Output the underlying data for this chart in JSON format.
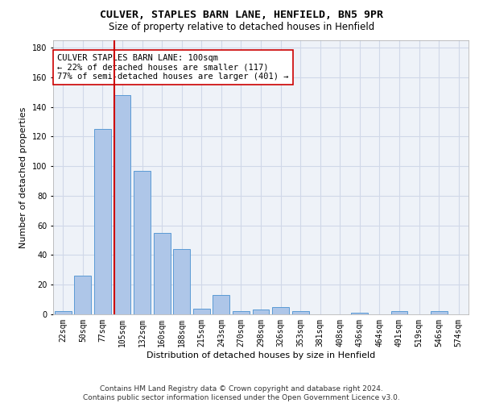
{
  "title": "CULVER, STAPLES BARN LANE, HENFIELD, BN5 9PR",
  "subtitle": "Size of property relative to detached houses in Henfield",
  "xlabel": "Distribution of detached houses by size in Henfield",
  "ylabel": "Number of detached properties",
  "categories": [
    "22sqm",
    "50sqm",
    "77sqm",
    "105sqm",
    "132sqm",
    "160sqm",
    "188sqm",
    "215sqm",
    "243sqm",
    "270sqm",
    "298sqm",
    "326sqm",
    "353sqm",
    "381sqm",
    "408sqm",
    "436sqm",
    "464sqm",
    "491sqm",
    "519sqm",
    "546sqm",
    "574sqm"
  ],
  "values": [
    2,
    26,
    125,
    148,
    97,
    55,
    44,
    4,
    13,
    2,
    3,
    5,
    2,
    0,
    0,
    1,
    0,
    2,
    0,
    2,
    0
  ],
  "bar_color": "#aec6e8",
  "bar_edge_color": "#5b9bd5",
  "vline_color": "#cc0000",
  "annotation_text": "CULVER STAPLES BARN LANE: 100sqm\n← 22% of detached houses are smaller (117)\n77% of semi-detached houses are larger (401) →",
  "annotation_box_color": "#ffffff",
  "annotation_box_edge": "#cc0000",
  "ylim": [
    0,
    185
  ],
  "yticks": [
    0,
    20,
    40,
    60,
    80,
    100,
    120,
    140,
    160,
    180
  ],
  "grid_color": "#d0d8e8",
  "bg_color": "#eef2f8",
  "footer": "Contains HM Land Registry data © Crown copyright and database right 2024.\nContains public sector information licensed under the Open Government Licence v3.0.",
  "title_fontsize": 9.5,
  "subtitle_fontsize": 8.5,
  "xlabel_fontsize": 8,
  "ylabel_fontsize": 8,
  "tick_fontsize": 7,
  "annotation_fontsize": 7.5,
  "footer_fontsize": 6.5
}
